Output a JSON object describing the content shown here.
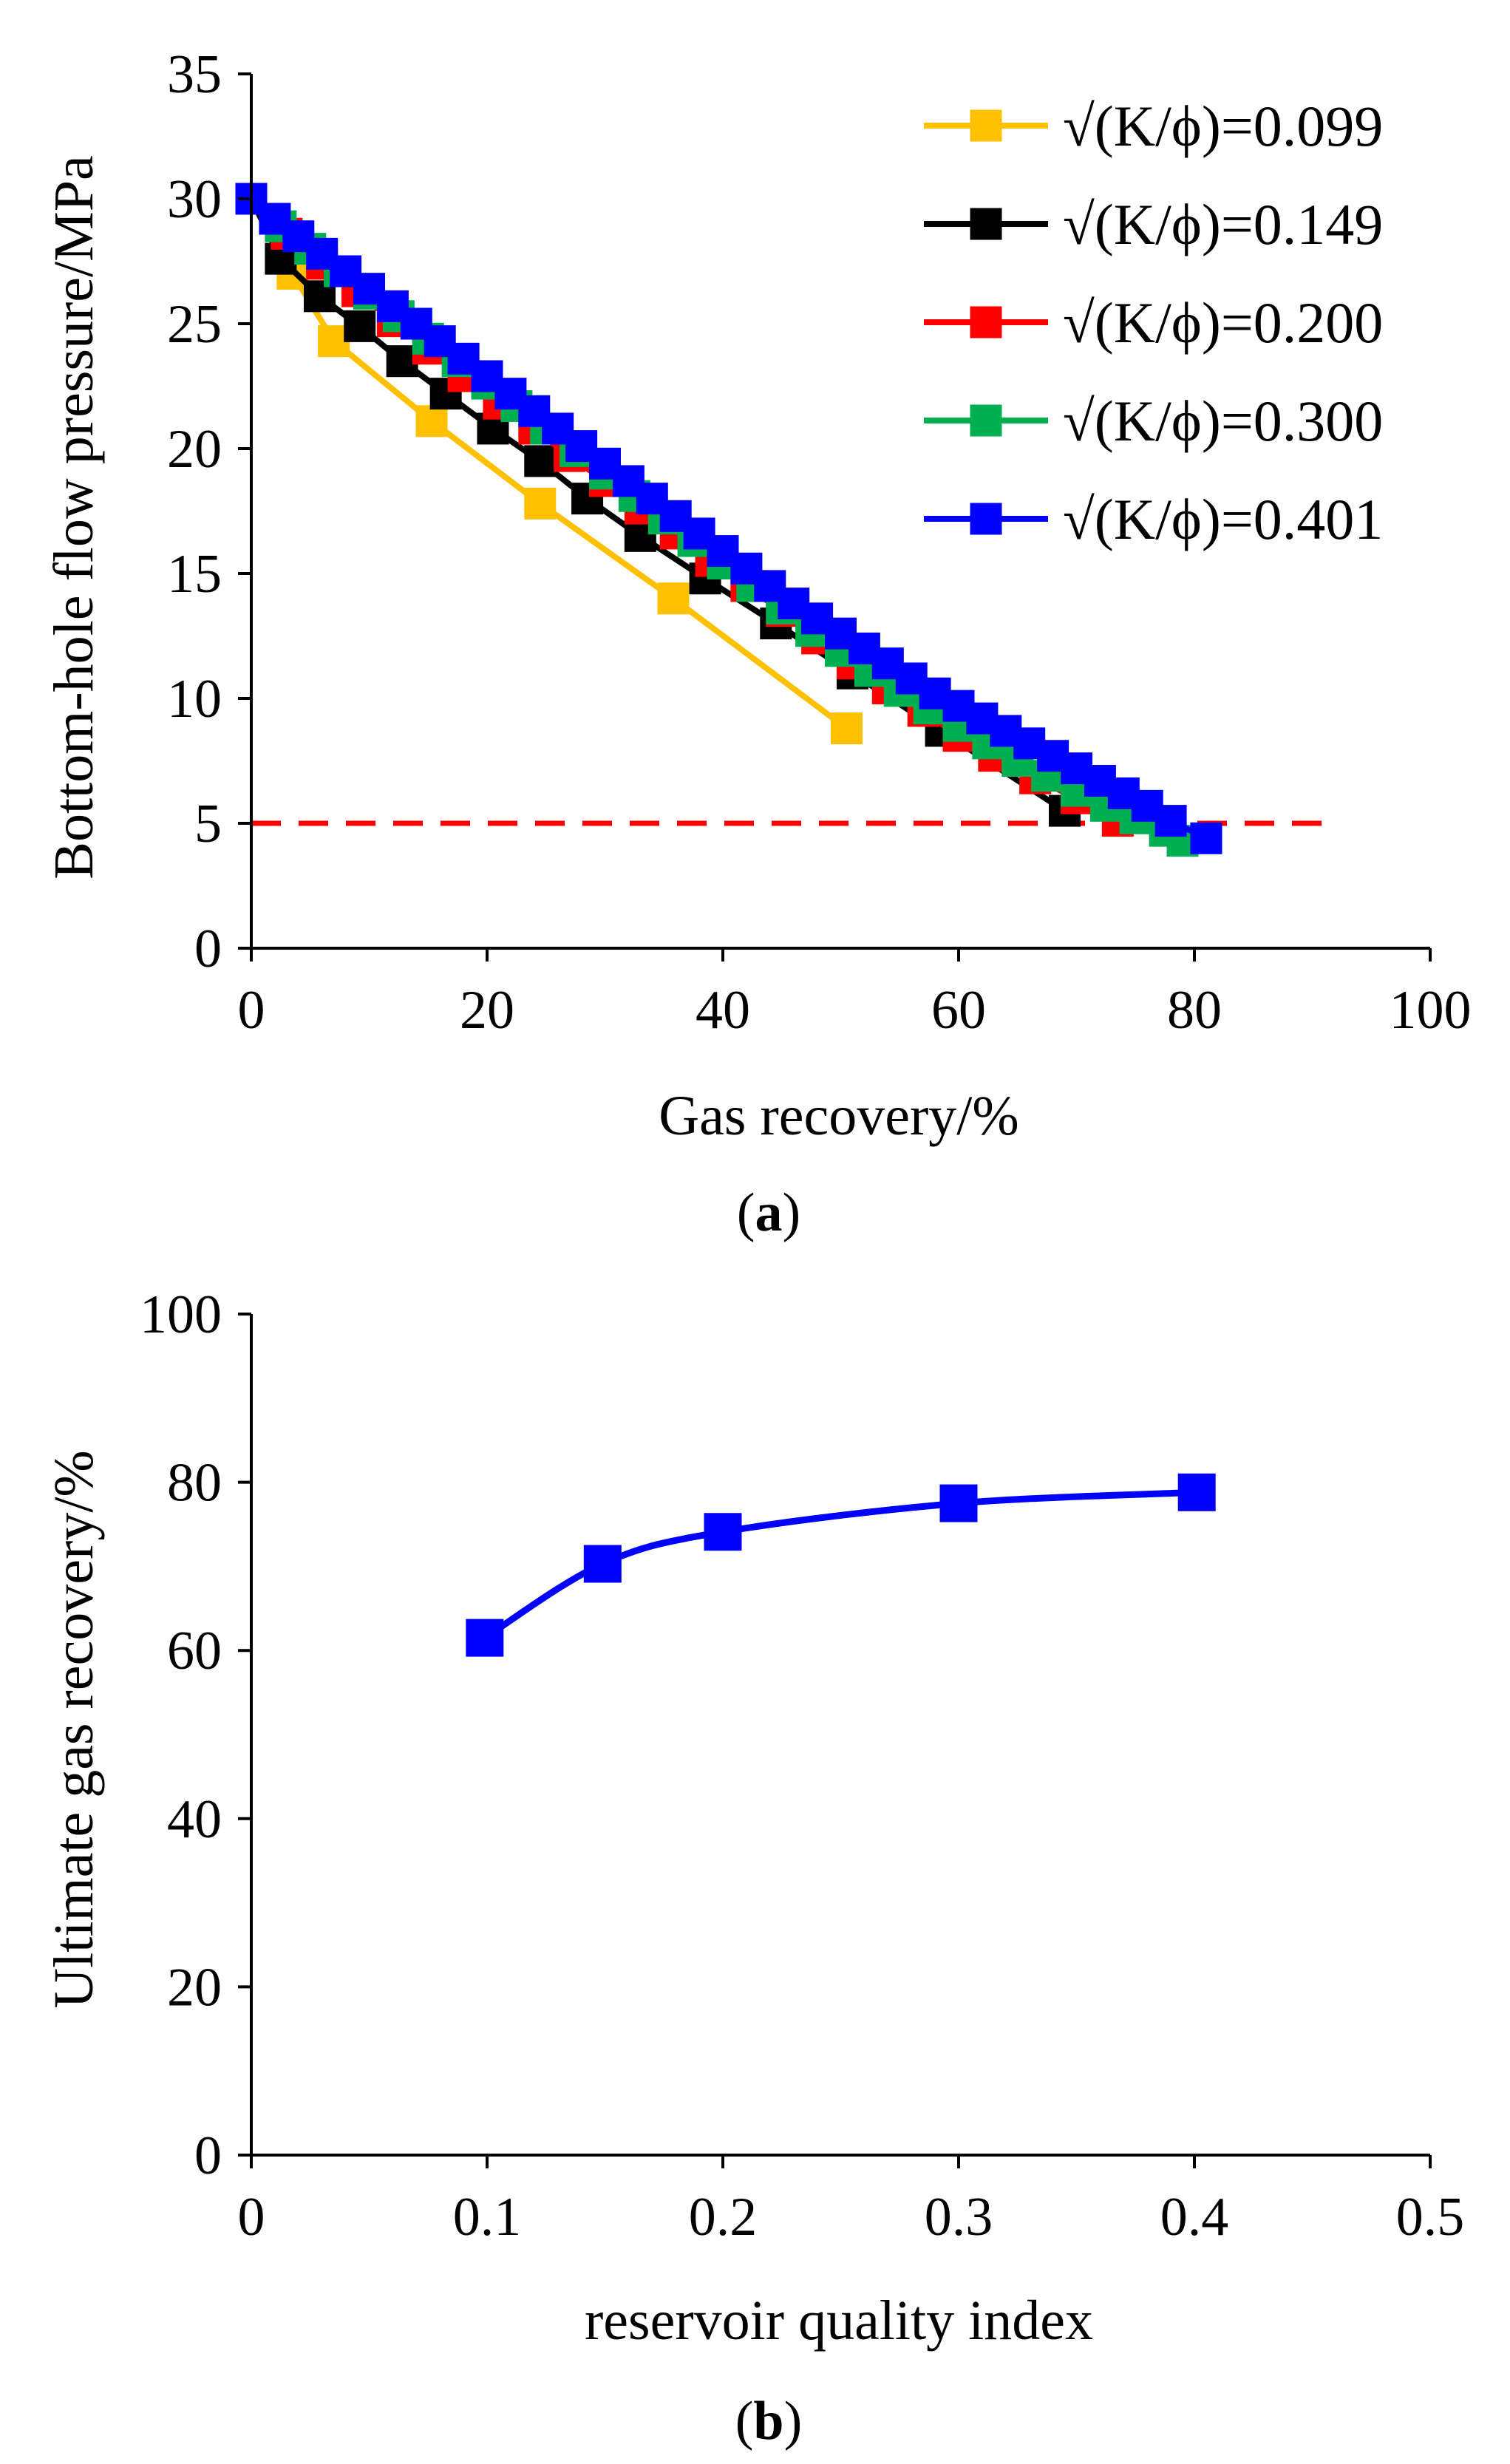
{
  "chart_data": [
    {
      "type": "line",
      "panel": "a",
      "panel_label": "(a)",
      "panel_letter": "a",
      "xlabel": "Gas recovery/%",
      "ylabel": "Bottom-hole flow pressure/MPa",
      "xlim": [
        0,
        100
      ],
      "ylim": [
        0,
        35
      ],
      "x_ticks": [
        0,
        20,
        40,
        60,
        80,
        100
      ],
      "y_ticks": [
        0,
        5,
        10,
        15,
        20,
        25,
        30,
        35
      ],
      "legend_position": "top-right",
      "reference_line": {
        "y": 5,
        "x_range": [
          0,
          92
        ],
        "color": "#ff0000",
        "style": "dashed"
      },
      "series": [
        {
          "name": "√(K/ϕ)=0.099",
          "color": "#ffc000",
          "x": [
            0,
            3.5,
            7,
            15.3,
            24.5,
            35.8,
            50.5
          ],
          "y": [
            30,
            27,
            24.3,
            21.1,
            17.8,
            14.0,
            8.8
          ]
        },
        {
          "name": "√(K/ϕ)=0.149",
          "color": "#000000",
          "x": [
            0,
            2.5,
            5.8,
            9.2,
            12.8,
            16.5,
            20.5,
            24.5,
            28.5,
            33,
            38.5,
            44.5,
            51,
            58.5,
            69
          ],
          "y": [
            30,
            27.6,
            26.1,
            24.9,
            23.5,
            22.2,
            20.8,
            19.5,
            18.0,
            16.5,
            14.8,
            13.0,
            11.0,
            8.7,
            5.5
          ]
        },
        {
          "name": "√(K/ϕ)=0.200",
          "color": "#ff0000",
          "x": [
            0,
            3,
            6,
            9,
            12,
            15,
            18,
            21,
            24,
            27,
            30,
            33,
            36,
            39,
            42,
            45,
            48,
            51,
            54,
            57,
            60,
            63,
            66.5,
            70,
            73.5
          ],
          "y": [
            30,
            28.6,
            27.4,
            26.3,
            25.1,
            24.0,
            22.9,
            21.8,
            20.8,
            19.7,
            18.7,
            17.6,
            16.6,
            15.5,
            14.5,
            13.5,
            12.4,
            11.4,
            10.4,
            9.5,
            8.5,
            7.7,
            6.8,
            6.0,
            5.1
          ]
        },
        {
          "name": "√(K/ϕ)=0.300",
          "color": "#00b050",
          "x": [
            0,
            2.5,
            5,
            7.5,
            10,
            12.5,
            15,
            17.5,
            20,
            22.5,
            25,
            27.5,
            30,
            32.5,
            35,
            37.5,
            40,
            42.5,
            45,
            47.5,
            50,
            52.5,
            55,
            57.5,
            60,
            62.5,
            65,
            67.5,
            70,
            72.5,
            75,
            77.5,
            79
          ],
          "y": [
            30,
            28.9,
            28.0,
            27.1,
            26.2,
            25.3,
            24.4,
            23.5,
            22.6,
            21.7,
            20.8,
            19.9,
            19.0,
            18.1,
            17.2,
            16.3,
            15.4,
            14.5,
            13.6,
            12.7,
            11.9,
            11.1,
            10.3,
            9.6,
            8.9,
            8.2,
            7.5,
            6.9,
            6.3,
            5.7,
            5.2,
            4.7,
            4.3
          ]
        },
        {
          "name": "√(K/ϕ)=0.401",
          "color": "#0000ff",
          "x": [
            0,
            2,
            4,
            6,
            8,
            10,
            12,
            14,
            16,
            18,
            20,
            22,
            24,
            26,
            28,
            30,
            32,
            34,
            36,
            38,
            40,
            42,
            44,
            46,
            48,
            50,
            52,
            54,
            56,
            58,
            60,
            62,
            64,
            66,
            68,
            70,
            72,
            74,
            76,
            78,
            81
          ],
          "y": [
            30,
            29.2,
            28.5,
            27.8,
            27.1,
            26.4,
            25.7,
            25.0,
            24.3,
            23.6,
            22.9,
            22.2,
            21.5,
            20.8,
            20.1,
            19.4,
            18.7,
            18.0,
            17.3,
            16.6,
            15.9,
            15.2,
            14.5,
            13.8,
            13.2,
            12.6,
            12.0,
            11.4,
            10.8,
            10.2,
            9.7,
            9.2,
            8.7,
            8.2,
            7.7,
            7.2,
            6.7,
            6.2,
            5.7,
            5.1,
            4.4
          ]
        }
      ]
    },
    {
      "type": "line",
      "panel": "b",
      "panel_label": "(b)",
      "panel_letter": "b",
      "xlabel": "reservoir quality index",
      "ylabel": "Ultimate gas recovery/%",
      "xlim": [
        0,
        0.5
      ],
      "ylim": [
        0,
        100
      ],
      "x_ticks": [
        0,
        0.1,
        0.2,
        0.3,
        0.4,
        0.5
      ],
      "y_ticks": [
        0,
        20,
        40,
        60,
        80,
        100
      ],
      "series": [
        {
          "name": "Ultimate gas recovery",
          "color": "#0000ff",
          "x": [
            0.099,
            0.149,
            0.2,
            0.3,
            0.401
          ],
          "y": [
            61.5,
            70.3,
            74.1,
            77.5,
            78.8
          ]
        }
      ]
    }
  ]
}
